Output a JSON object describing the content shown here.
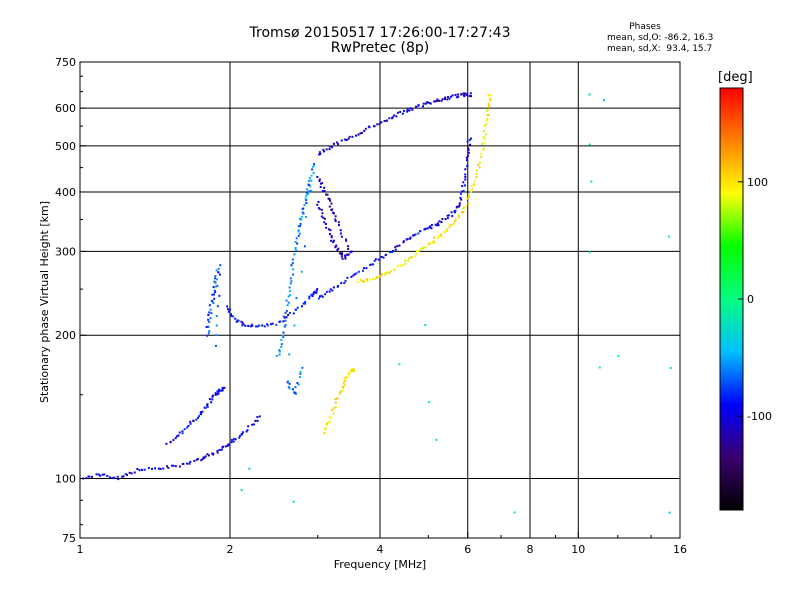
{
  "header": {
    "title_line1": "Tromsø 20150517 17:26:00-17:27:43",
    "title_line2": "RwPretec (8p)"
  },
  "stats": {
    "label": "Phases",
    "line_o": "mean, sd,O: -86.2, 16.3",
    "line_x": "mean, sd,X:  93.4, 15.7"
  },
  "colorbar": {
    "unit": "[deg]",
    "ticks": [
      {
        "value": 100,
        "label": "100"
      },
      {
        "value": 0,
        "label": "0"
      },
      {
        "value": -100,
        "label": "-100"
      }
    ],
    "range": [
      -180,
      180
    ],
    "colors": [
      "#000000",
      "#3a0070",
      "#0000ff",
      "#00c0ff",
      "#00ff80",
      "#00ff00",
      "#ffff00",
      "#ff8000",
      "#ff0000"
    ]
  },
  "chart_data": {
    "type": "scatter",
    "title": "Tromsø 20150517 17:26:00-17:27:43",
    "subtitle": "RwPretec (8p)",
    "xlabel": "Frequency [MHz]",
    "ylabel": "Stationary phase Virtual Height [km]",
    "xscale": "log",
    "yscale": "log",
    "xlim": [
      1,
      16
    ],
    "ylim": [
      75,
      750
    ],
    "x_ticks": [
      {
        "value": 1,
        "label": "1"
      },
      {
        "value": 2,
        "label": "2"
      },
      {
        "value": 4,
        "label": "4"
      },
      {
        "value": 6,
        "label": "6"
      },
      {
        "value": 8,
        "label": "8"
      },
      {
        "value": 10,
        "label": "10"
      },
      {
        "value": 16,
        "label": "16"
      }
    ],
    "y_ticks": [
      {
        "value": 75,
        "label": "75"
      },
      {
        "value": 100,
        "label": "100"
      },
      {
        "value": 200,
        "label": "200"
      },
      {
        "value": 300,
        "label": "300"
      },
      {
        "value": 400,
        "label": "400"
      },
      {
        "value": 500,
        "label": "500"
      },
      {
        "value": 600,
        "label": "600"
      },
      {
        "value": 750,
        "label": "750"
      }
    ],
    "grid_x": [
      2,
      4,
      6,
      8,
      10
    ],
    "grid_y": [
      100,
      200,
      300,
      400,
      500,
      600
    ],
    "color_by": "phase_deg",
    "traces": [
      {
        "description": "low O trace",
        "phase": -100,
        "points": [
          [
            1.0,
            100
          ],
          [
            1.1,
            102
          ],
          [
            1.2,
            100
          ],
          [
            1.3,
            104
          ],
          [
            1.45,
            105
          ],
          [
            1.6,
            107
          ],
          [
            1.75,
            110
          ],
          [
            1.85,
            113
          ],
          [
            1.95,
            116
          ],
          [
            2.05,
            121
          ],
          [
            2.15,
            126
          ],
          [
            2.3,
            135
          ]
        ]
      },
      {
        "description": "rising O trace",
        "phase": -95,
        "points": [
          [
            1.5,
            118
          ],
          [
            1.6,
            125
          ],
          [
            1.7,
            133
          ],
          [
            1.78,
            140
          ],
          [
            1.85,
            148
          ],
          [
            1.9,
            152
          ],
          [
            1.95,
            155
          ]
        ]
      },
      {
        "description": "O mid trace",
        "phase": -90,
        "points": [
          [
            1.97,
            230
          ],
          [
            2.05,
            215
          ],
          [
            2.15,
            210
          ],
          [
            2.3,
            208
          ],
          [
            2.5,
            212
          ],
          [
            2.7,
            225
          ],
          [
            2.9,
            240
          ],
          [
            3.0,
            250
          ]
        ]
      },
      {
        "description": "O F-trace low",
        "phase": -95,
        "points": [
          [
            3.0,
            240
          ],
          [
            3.2,
            250
          ],
          [
            3.5,
            265
          ],
          [
            3.8,
            280
          ],
          [
            4.1,
            295
          ],
          [
            4.4,
            310
          ],
          [
            4.7,
            325
          ],
          [
            5.0,
            335
          ],
          [
            5.3,
            345
          ],
          [
            5.6,
            360
          ],
          [
            5.8,
            380
          ],
          [
            5.9,
            420
          ],
          [
            6.0,
            470
          ],
          [
            6.05,
            520
          ]
        ]
      },
      {
        "description": "O F-trace upper",
        "phase": -105,
        "points": [
          [
            3.0,
            480
          ],
          [
            3.2,
            500
          ],
          [
            3.5,
            520
          ],
          [
            3.8,
            545
          ],
          [
            4.1,
            565
          ],
          [
            4.4,
            585
          ],
          [
            4.7,
            600
          ],
          [
            5.0,
            615
          ],
          [
            5.3,
            625
          ],
          [
            5.6,
            635
          ],
          [
            5.9,
            640
          ],
          [
            6.1,
            640
          ]
        ]
      },
      {
        "description": "O dense cluster",
        "phase": -110,
        "points": [
          [
            3.0,
            380
          ],
          [
            3.1,
            350
          ],
          [
            3.2,
            320
          ],
          [
            3.3,
            300
          ],
          [
            3.4,
            290
          ],
          [
            3.5,
            300
          ],
          [
            3.3,
            340
          ],
          [
            3.2,
            370
          ],
          [
            3.1,
            400
          ],
          [
            3.0,
            430
          ]
        ]
      },
      {
        "description": "spread cluster",
        "phase": -60,
        "points": [
          [
            2.5,
            180
          ],
          [
            2.55,
            200
          ],
          [
            2.6,
            230
          ],
          [
            2.65,
            260
          ],
          [
            2.7,
            300
          ],
          [
            2.75,
            330
          ],
          [
            2.8,
            360
          ],
          [
            2.85,
            390
          ],
          [
            2.9,
            420
          ],
          [
            2.95,
            460
          ],
          [
            2.6,
            160
          ],
          [
            2.7,
            150
          ],
          [
            2.8,
            170
          ]
        ]
      },
      {
        "description": "X F-trace",
        "phase": 95,
        "points": [
          [
            3.6,
            260
          ],
          [
            3.9,
            262
          ],
          [
            4.2,
            272
          ],
          [
            4.5,
            285
          ],
          [
            4.8,
            300
          ],
          [
            5.1,
            315
          ],
          [
            5.4,
            330
          ],
          [
            5.7,
            350
          ],
          [
            6.0,
            380
          ],
          [
            6.2,
            420
          ],
          [
            6.4,
            480
          ],
          [
            6.5,
            540
          ],
          [
            6.6,
            600
          ],
          [
            6.65,
            640
          ]
        ]
      },
      {
        "description": "X low trace",
        "phase": 100,
        "points": [
          [
            3.1,
            125
          ],
          [
            3.2,
            135
          ],
          [
            3.3,
            150
          ],
          [
            3.4,
            160
          ],
          [
            3.5,
            168
          ],
          [
            3.55,
            170
          ]
        ]
      },
      {
        "description": "1.9 MHz column",
        "phase": -70,
        "points": [
          [
            1.8,
            200
          ],
          [
            1.82,
            220
          ],
          [
            1.85,
            240
          ],
          [
            1.87,
            260
          ],
          [
            1.9,
            280
          ],
          [
            1.88,
            190
          ]
        ]
      },
      {
        "description": "isolated points",
        "phase": -20,
        "points": [
          [
            10.6,
            640
          ],
          [
            11.2,
            620
          ],
          [
            10.5,
            500
          ],
          [
            10.6,
            420
          ],
          [
            10.5,
            300
          ],
          [
            11.0,
            170
          ],
          [
            12.1,
            180
          ],
          [
            15.3,
            320
          ],
          [
            15.4,
            170
          ],
          [
            15.3,
            85
          ],
          [
            7.5,
            85
          ],
          [
            4.9,
            210
          ],
          [
            4.4,
            175
          ],
          [
            5.0,
            145
          ],
          [
            5.2,
            120
          ],
          [
            2.7,
            90
          ],
          [
            2.2,
            105
          ],
          [
            2.1,
            95
          ]
        ]
      }
    ]
  }
}
